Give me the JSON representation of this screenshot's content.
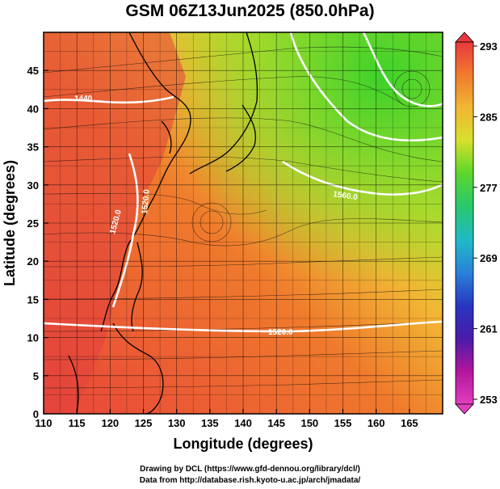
{
  "title": "GSM 06Z13Jun2025 (850.0hPa)",
  "x_axis": {
    "label": "Longitude (degrees)",
    "ticks": [
      "110",
      "115",
      "120",
      "125",
      "130",
      "135",
      "140",
      "145",
      "150",
      "155",
      "160",
      "165"
    ]
  },
  "y_axis": {
    "label": "Latitude  (degrees)",
    "ticks": [
      "0",
      "5",
      "10",
      "15",
      "20",
      "25",
      "30",
      "35",
      "40",
      "45"
    ]
  },
  "colorbar": {
    "labels": [
      "293",
      "285",
      "277",
      "269",
      "261",
      "253"
    ],
    "colors": [
      "#e8383d",
      "#f07a2e",
      "#f2b533",
      "#d8e02c",
      "#5fd62a",
      "#29c96a",
      "#20b8c8",
      "#2a7fd8",
      "#2735c0",
      "#4b1ba8",
      "#b2169c",
      "#e23fbf"
    ]
  },
  "contour_labels": [
    "1440",
    "1560.0",
    "1520.0",
    "1520.0",
    "1520.0"
  ],
  "credits": {
    "line1": "Drawing by DCL (https://www.gfd-dennou.org/library/dcl/)",
    "line2": "Data from http://database.rish.kyoto-u.ac.jp/arch/jmadata/"
  }
}
